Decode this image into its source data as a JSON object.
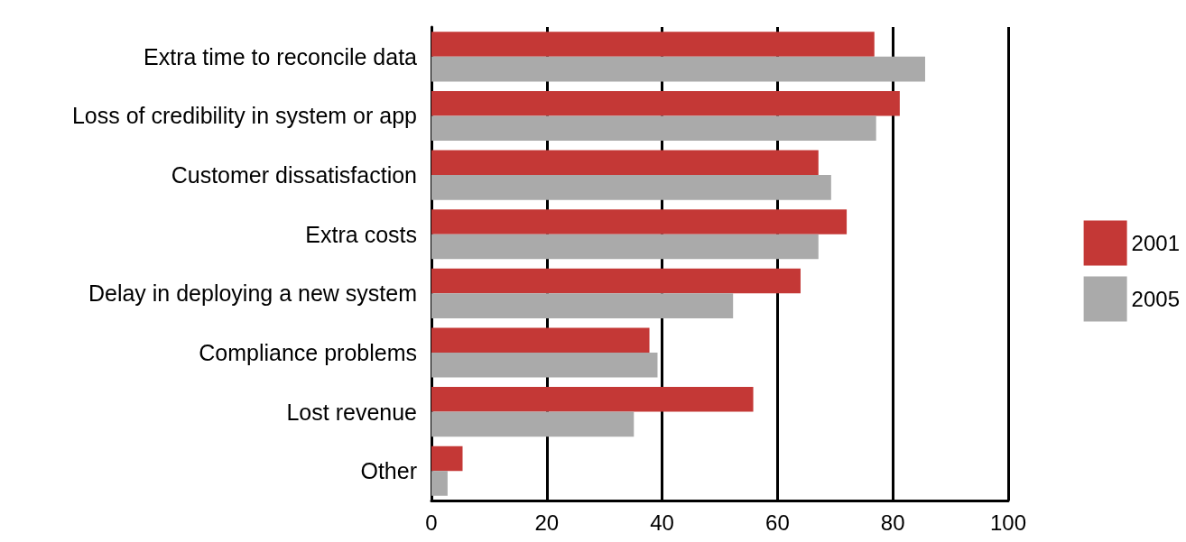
{
  "chart_data": {
    "type": "bar",
    "orientation": "horizontal",
    "categories": [
      "Extra time to reconcile data",
      "Loss of credibility in system or app",
      "Customer dissatisfaction",
      "Extra costs",
      "Delay in deploying a new system",
      "Compliance problems",
      "Lost revenue",
      "Other"
    ],
    "series": [
      {
        "name": "2001",
        "color": "#c43836",
        "values": [
          76.8,
          81.2,
          67.1,
          72,
          64,
          37.8,
          55.8,
          5.4
        ]
      },
      {
        "name": "2005",
        "color": "#aaaaaa",
        "values": [
          85.6,
          77.1,
          69.3,
          67.1,
          52.3,
          39.2,
          35.1,
          2.8
        ]
      }
    ],
    "xlim": [
      0,
      100
    ],
    "xticks": [
      0,
      20,
      40,
      60,
      80,
      100
    ],
    "grid": "x",
    "legend": "right"
  }
}
